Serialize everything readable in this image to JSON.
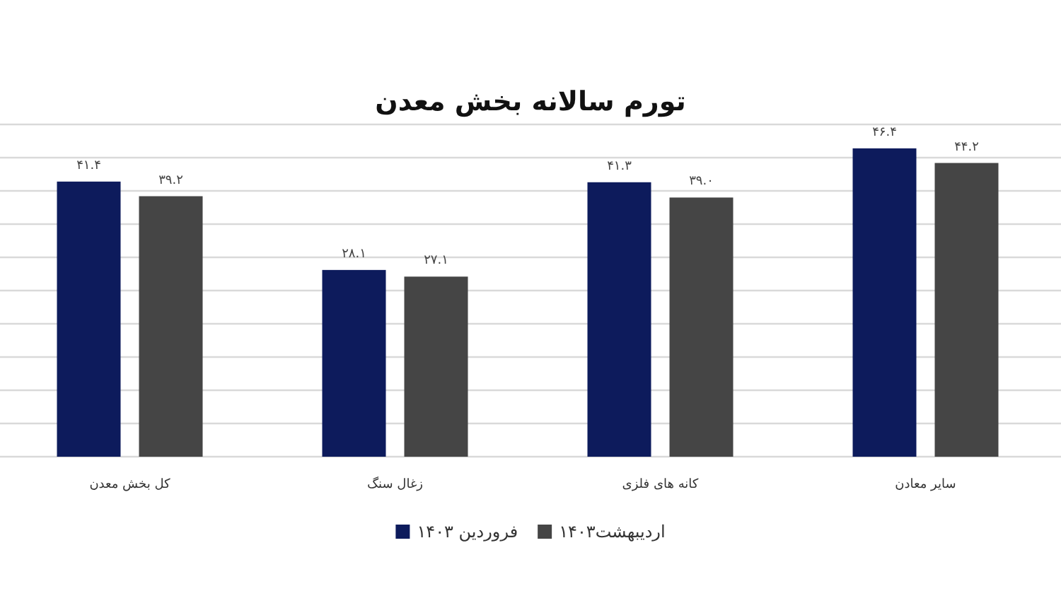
{
  "chart_data": {
    "type": "bar",
    "title": "تورم سالانه بخش معدن",
    "categories": [
      "کل بخش معدن",
      "زغال سنگ",
      "کانه های فلزی",
      "سایر معادن"
    ],
    "series": [
      {
        "name": "فروردین ۱۴۰۳",
        "color": "#0d1b5c",
        "values": [
          41.4,
          28.1,
          41.3,
          46.4
        ],
        "value_labels": [
          "۴۱.۴",
          "۲۸.۱",
          "۴۱.۳",
          "۴۶.۴"
        ]
      },
      {
        "name": "اردیبهشت۱۴۰۳",
        "color": "#454545",
        "values": [
          39.2,
          27.1,
          39.0,
          44.2
        ],
        "value_labels": [
          "۳۹.۲",
          "۲۷.۱",
          "۳۹.۰",
          "۴۴.۲"
        ]
      }
    ],
    "ylim": [
      0,
      50
    ],
    "yticks": [
      {
        "value": 0,
        "label": null
      },
      {
        "value": 5,
        "label": null
      },
      {
        "value": 10,
        "label": null
      },
      {
        "value": 15,
        "label": null
      },
      {
        "value": 20,
        "label": null
      },
      {
        "value": 25,
        "label": null
      },
      {
        "value": 30,
        "label": null
      },
      {
        "value": 35,
        "label": null
      },
      {
        "value": 40,
        "label": null
      },
      {
        "value": 45,
        "label": null
      },
      {
        "value": 50,
        "label": null
      }
    ],
    "tick_labels": "x",
    "grid": "y",
    "legend": "bottom"
  }
}
